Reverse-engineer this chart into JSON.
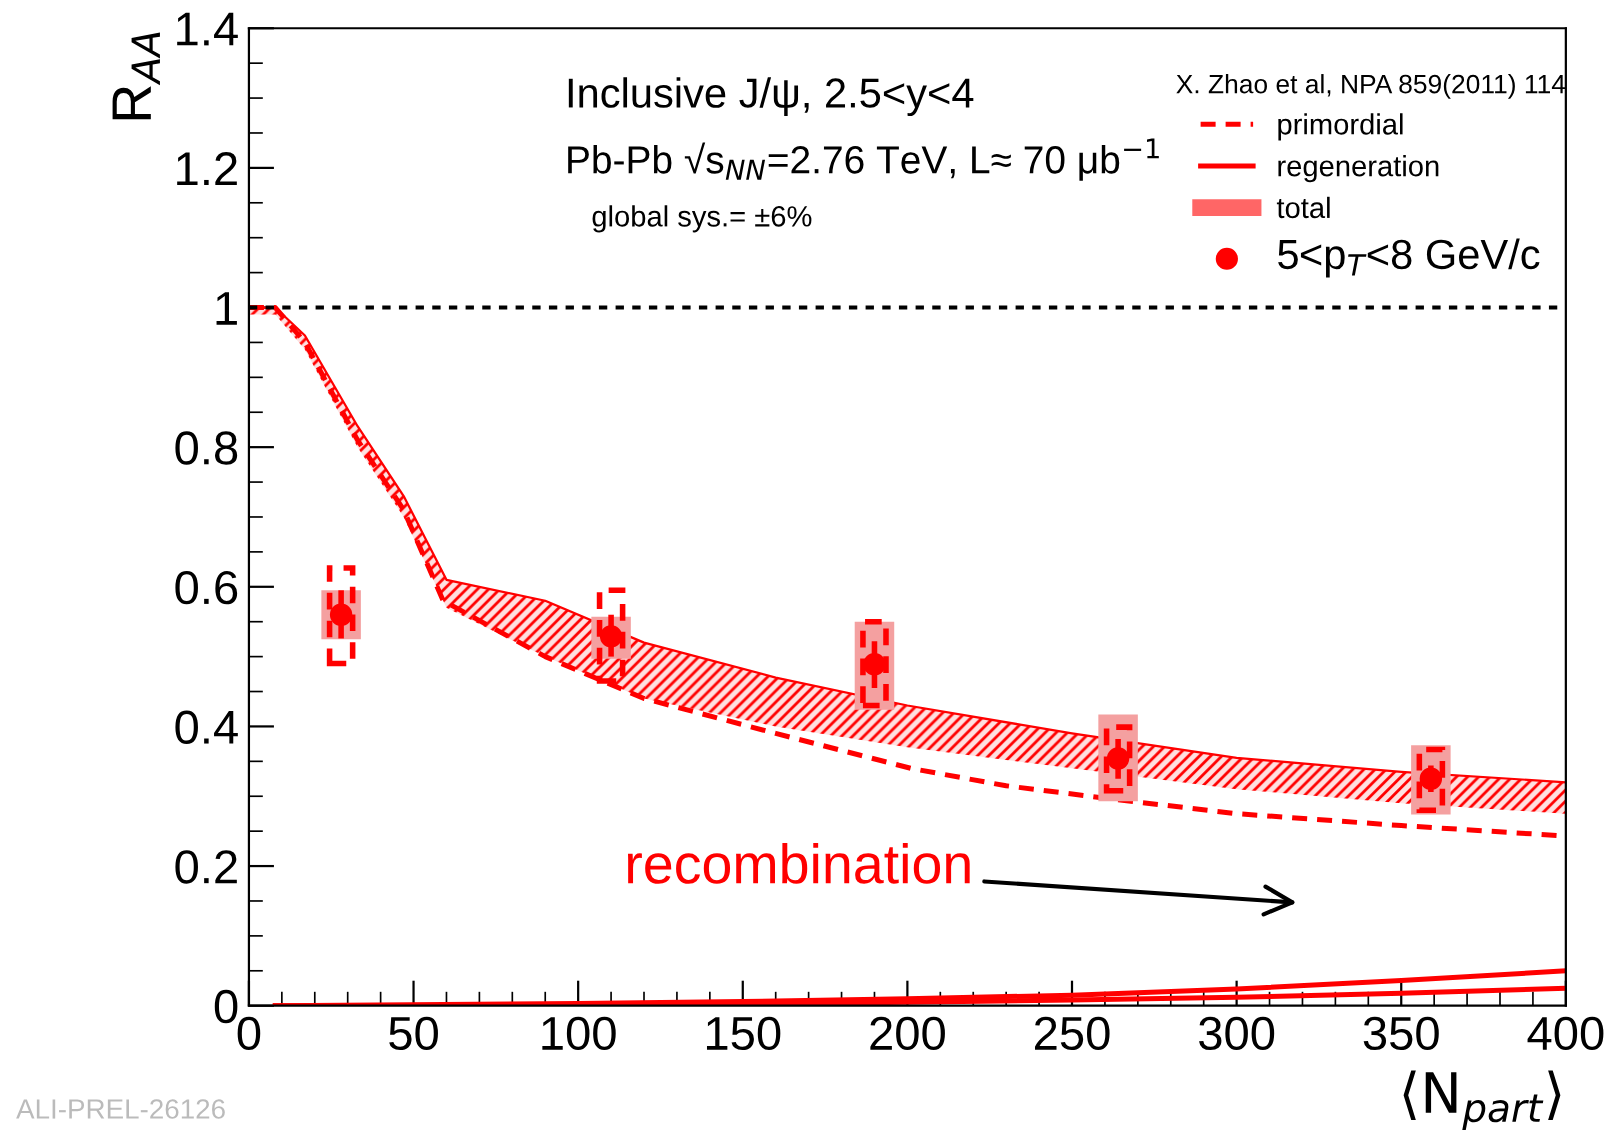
{
  "chart_data": {
    "type": "line",
    "xlabel": "⟨N$_{part}$⟩",
    "ylabel": "R$_{AA}$",
    "xlim": [
      0,
      400
    ],
    "ylim": [
      0,
      1.4
    ],
    "xticks": [
      0,
      50,
      100,
      150,
      200,
      250,
      300,
      350,
      400
    ],
    "yticks": [
      0,
      0.2,
      0.4,
      0.6,
      0.8,
      {
        "value": 1,
        "label": "1"
      },
      1.2,
      1.4
    ],
    "grid": false,
    "legend": "top right",
    "legend_title": "X. Zhao et al, NPA 859(2011) 114",
    "ref_lines": [
      {
        "axis": "y",
        "value": 1,
        "color": "#000000",
        "line_style": "dotted"
      }
    ],
    "annotations": [
      "Inclusive J/ψ, 2.5<y<4",
      "Pb-Pb √s$_{NN}$=2.76 TeV, L≈ 70 μb$^{−1}$",
      "global sys.= ±6%",
      "recombination",
      "ALI-PREL-26126"
    ],
    "series": [
      {
        "name": "primordial",
        "line_style": "dashed",
        "color": "#ff0000",
        "x": [
          0,
          8,
          17,
          33,
          47,
          59,
          90,
          120,
          160,
          201,
          230,
          264,
          300,
          350,
          400
        ],
        "values": [
          1.0,
          1.0,
          0.95,
          0.81,
          0.71,
          0.58,
          0.5,
          0.44,
          0.39,
          0.34,
          0.315,
          0.295,
          0.275,
          0.258,
          0.243
        ]
      },
      {
        "name": "regeneration",
        "line_style": "solid",
        "color": "#ff0000",
        "x": [
          8,
          100,
          150,
          200,
          250,
          300,
          350,
          400
        ],
        "values": [
          0,
          0.003,
          0.006,
          0.01,
          0.015,
          0.024,
          0.036,
          0.05
        ]
      },
      {
        "line_style": "solid",
        "color": "#ff0000",
        "x": [
          8,
          100,
          150,
          200,
          250,
          300,
          350,
          400
        ],
        "values": [
          0,
          0,
          0.002,
          0.005,
          0.008,
          0.012,
          0.018,
          0.025
        ]
      },
      {
        "name": "total",
        "type": "line",
        "line_style": "solid",
        "color": "#ff0000",
        "x": [
          0,
          8,
          17,
          33,
          47,
          60,
          90,
          120,
          160,
          200,
          250,
          300,
          350,
          400
        ],
        "values": [
          1.0,
          1.0,
          0.96,
          0.83,
          0.73,
          0.61,
          0.58,
          0.52,
          0.47,
          0.43,
          0.39,
          0.355,
          0.335,
          0.32
        ],
        "lower": [
          0.99,
          0.99,
          0.94,
          0.8,
          0.7,
          0.57,
          0.5,
          0.44,
          0.4,
          0.37,
          0.34,
          0.31,
          0.29,
          0.275
        ],
        "upper": [
          1.0,
          1.0,
          0.96,
          0.83,
          0.73,
          0.61,
          0.58,
          0.52,
          0.47,
          0.43,
          0.39,
          0.355,
          0.335,
          0.32
        ]
      },
      {
        "type": "bar",
        "color": "#f4a0a0",
        "x": [
          28,
          110,
          190,
          264,
          359
        ],
        "base": [
          0.525,
          0.497,
          0.424,
          0.293,
          0.274
        ],
        "values": [
          0.07,
          0.06,
          0.126,
          0.124,
          0.099
        ]
      },
      {
        "type": "bar",
        "line_style": "dashed",
        "color": "#ff0000",
        "x": [
          28,
          110,
          190,
          264,
          359
        ],
        "base": [
          0.49,
          0.465,
          0.43,
          0.308,
          0.28
        ],
        "values": [
          0.137,
          0.13,
          0.12,
          0.091,
          0.087
        ]
      },
      {
        "name": "5<p$_{T}$<8 GeV/c",
        "type": "scatter",
        "marker": "circle",
        "color": "#ff0000",
        "x": [
          28,
          110,
          190,
          264,
          359
        ],
        "values": [
          0.56,
          0.529,
          0.489,
          0.354,
          0.325
        ],
        "errors": [
          [
            0.526,
            0.595
          ],
          [
            0.5,
            0.56
          ],
          [
            0.455,
            0.522
          ],
          [
            0.325,
            0.382
          ],
          [
            0.306,
            0.344
          ]
        ]
      }
    ]
  }
}
